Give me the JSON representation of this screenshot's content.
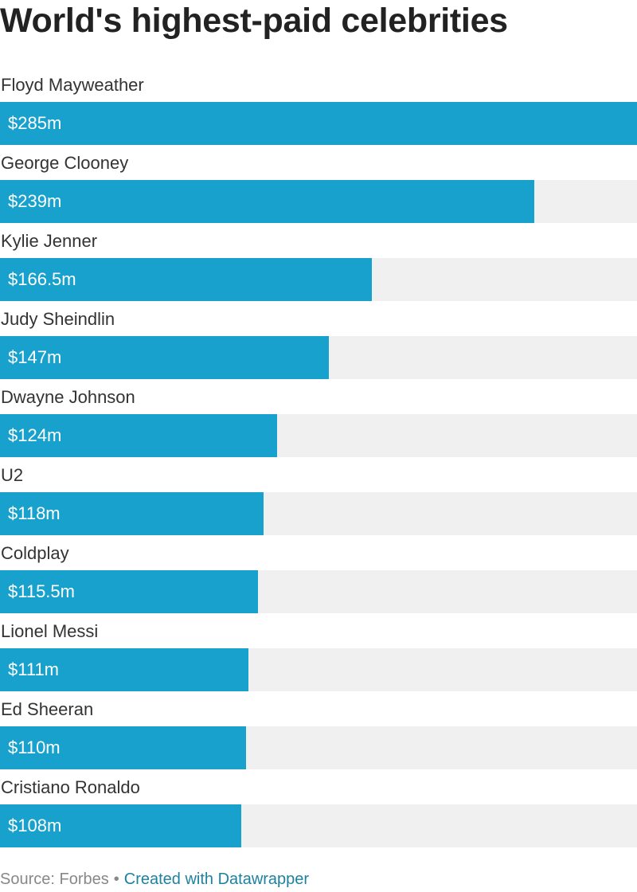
{
  "title": "World's highest-paid celebrities",
  "source_text": "Source: Forbes",
  "separator": "•",
  "credit_text": "Created with Datawrapper",
  "colors": {
    "bar": "#18a1cd",
    "track": "#f0f0f0",
    "credit_link": "#1d81a2"
  },
  "chart_data": {
    "type": "bar",
    "orientation": "horizontal",
    "title": "World's highest-paid celebrities",
    "categories": [
      "Floyd Mayweather",
      "George Clooney",
      "Kylie Jenner",
      "Judy Sheindlin",
      "Dwayne Johnson",
      "U2",
      "Coldplay",
      "Lionel Messi",
      "Ed Sheeran",
      "Cristiano Ronaldo"
    ],
    "values": [
      285,
      239,
      166.5,
      147,
      124,
      118,
      115.5,
      111,
      110,
      108
    ],
    "value_labels": [
      "$285m",
      "$239m",
      "$166.5m",
      "$147m",
      "$124m",
      "$118m",
      "$115.5m",
      "$111m",
      "$110m",
      "$108m"
    ],
    "xlim": [
      0,
      285
    ],
    "grid": false,
    "legend": "none"
  }
}
